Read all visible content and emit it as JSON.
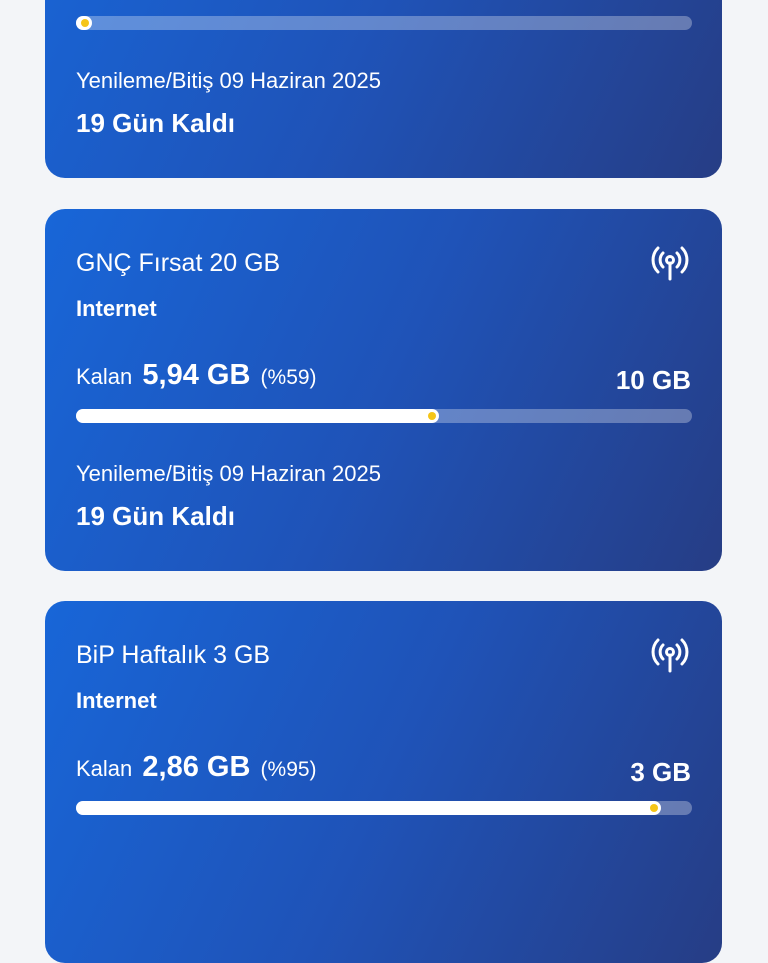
{
  "colors": {
    "background": "#f3f5f8",
    "card_start": "#1866d8",
    "card_end": "#263d85",
    "progress_dot": "#f5c518"
  },
  "cards": [
    {
      "title": "",
      "type": "",
      "remaining_label": "",
      "remaining_amount": "",
      "remaining_percent": "",
      "total": "",
      "progress": 0.01,
      "renewal": "Yenileme/Bitiş 09 Haziran 2025",
      "days_left": "19 Gün Kaldı",
      "icon": "antenna-signal-icon"
    },
    {
      "title": "GNÇ Fırsat 20 GB",
      "type": "Internet",
      "remaining_label": "Kalan",
      "remaining_amount": "5,94 GB",
      "remaining_percent": "(%59)",
      "total": "10 GB",
      "progress": 0.59,
      "renewal": "Yenileme/Bitiş 09 Haziran 2025",
      "days_left": "19 Gün Kaldı",
      "icon": "antenna-signal-icon"
    },
    {
      "title": "BiP Haftalık 3 GB",
      "type": "Internet",
      "remaining_label": "Kalan",
      "remaining_amount": "2,86 GB",
      "remaining_percent": "(%95)",
      "total": "3 GB",
      "progress": 0.95,
      "renewal": "",
      "days_left": "",
      "icon": "antenna-signal-icon"
    }
  ]
}
